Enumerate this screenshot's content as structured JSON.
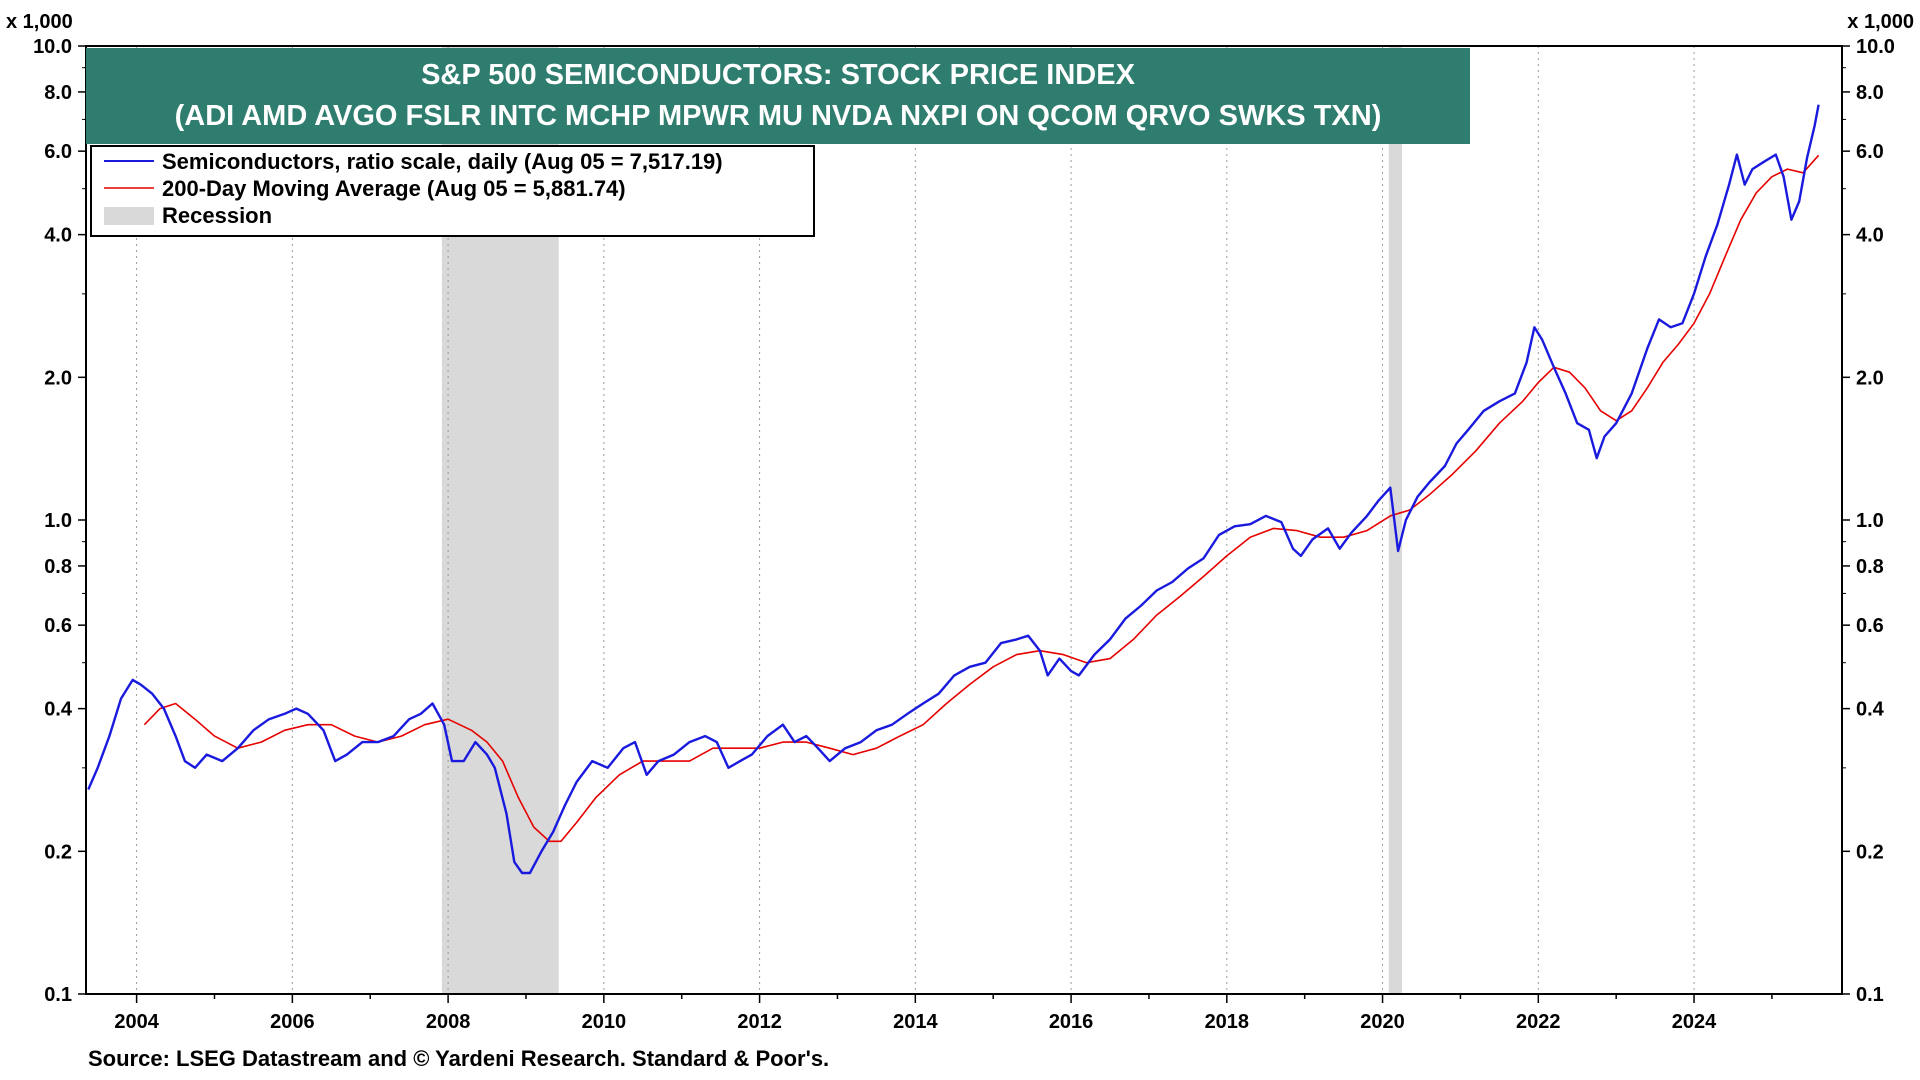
{
  "chart_data": {
    "type": "line",
    "title": "S&P 500 SEMICONDUCTORS: STOCK PRICE INDEX",
    "subtitle": "(ADI AMD AVGO FSLR INTC MCHP MPWR MU NVDA NXPI ON QCOM QRVO SWKS TXN)",
    "unit_label": "x 1,000",
    "y_scale": "log",
    "ylim": [
      0.1,
      10.0
    ],
    "xlim": [
      2003.35,
      2025.9
    ],
    "y_ticks": [
      {
        "value": 0.1,
        "label": "0.1"
      },
      {
        "value": 0.2,
        "label": "0.2"
      },
      {
        "value": 0.4,
        "label": "0.4"
      },
      {
        "value": 0.6,
        "label": "0.6"
      },
      {
        "value": 0.8,
        "label": "0.8"
      },
      {
        "value": 1.0,
        "label": "1.0"
      },
      {
        "value": 2.0,
        "label": "2.0"
      },
      {
        "value": 4.0,
        "label": "4.0"
      },
      {
        "value": 6.0,
        "label": "6.0"
      },
      {
        "value": 8.0,
        "label": "8.0"
      },
      {
        "value": 10.0,
        "label": "10.0"
      }
    ],
    "x_ticks": [
      {
        "value": 2004,
        "label": "2004"
      },
      {
        "value": 2006,
        "label": "2006"
      },
      {
        "value": 2008,
        "label": "2008"
      },
      {
        "value": 2010,
        "label": "2010"
      },
      {
        "value": 2012,
        "label": "2012"
      },
      {
        "value": 2014,
        "label": "2014"
      },
      {
        "value": 2016,
        "label": "2016"
      },
      {
        "value": 2018,
        "label": "2018"
      },
      {
        "value": 2020,
        "label": "2020"
      },
      {
        "value": 2022,
        "label": "2022"
      },
      {
        "value": 2024,
        "label": "2024"
      }
    ],
    "recessions": [
      {
        "start": 2007.92,
        "end": 2009.42
      },
      {
        "start": 2020.08,
        "end": 2020.25
      }
    ],
    "legend": [
      {
        "label": "Semiconductors, ratio scale, daily (Aug 05 = 7,517.19)",
        "color": "#1a1adf",
        "kind": "line"
      },
      {
        "label": "200-Day Moving Average (Aug 05 = 5,881.74)",
        "color": "#e60000",
        "kind": "line"
      },
      {
        "label": "Recession",
        "color": "#d9d9d9",
        "kind": "band"
      }
    ],
    "legend_position": "top-left",
    "grid": "vertical dotted at tick years",
    "colors": {
      "title_bg": "#2e7d6e",
      "recession": "#d9d9d9"
    },
    "series": [
      {
        "name": "Semiconductors, ratio scale, daily",
        "color": "#1a1adf",
        "points": [
          [
            2003.38,
            0.27
          ],
          [
            2003.5,
            0.3
          ],
          [
            2003.65,
            0.35
          ],
          [
            2003.8,
            0.42
          ],
          [
            2003.95,
            0.46
          ],
          [
            2004.05,
            0.45
          ],
          [
            2004.2,
            0.43
          ],
          [
            2004.35,
            0.4
          ],
          [
            2004.5,
            0.35
          ],
          [
            2004.62,
            0.31
          ],
          [
            2004.75,
            0.3
          ],
          [
            2004.9,
            0.32
          ],
          [
            2005.1,
            0.31
          ],
          [
            2005.3,
            0.33
          ],
          [
            2005.5,
            0.36
          ],
          [
            2005.7,
            0.38
          ],
          [
            2005.9,
            0.39
          ],
          [
            2006.05,
            0.4
          ],
          [
            2006.2,
            0.39
          ],
          [
            2006.4,
            0.36
          ],
          [
            2006.55,
            0.31
          ],
          [
            2006.7,
            0.32
          ],
          [
            2006.9,
            0.34
          ],
          [
            2007.1,
            0.34
          ],
          [
            2007.3,
            0.35
          ],
          [
            2007.5,
            0.38
          ],
          [
            2007.65,
            0.39
          ],
          [
            2007.8,
            0.41
          ],
          [
            2007.95,
            0.37
          ],
          [
            2008.05,
            0.31
          ],
          [
            2008.2,
            0.31
          ],
          [
            2008.35,
            0.34
          ],
          [
            2008.5,
            0.32
          ],
          [
            2008.6,
            0.3
          ],
          [
            2008.75,
            0.24
          ],
          [
            2008.85,
            0.19
          ],
          [
            2008.95,
            0.18
          ],
          [
            2009.05,
            0.18
          ],
          [
            2009.2,
            0.2
          ],
          [
            2009.35,
            0.22
          ],
          [
            2009.5,
            0.25
          ],
          [
            2009.65,
            0.28
          ],
          [
            2009.85,
            0.31
          ],
          [
            2010.05,
            0.3
          ],
          [
            2010.25,
            0.33
          ],
          [
            2010.4,
            0.34
          ],
          [
            2010.55,
            0.29
          ],
          [
            2010.7,
            0.31
          ],
          [
            2010.9,
            0.32
          ],
          [
            2011.1,
            0.34
          ],
          [
            2011.3,
            0.35
          ],
          [
            2011.45,
            0.34
          ],
          [
            2011.6,
            0.3
          ],
          [
            2011.75,
            0.31
          ],
          [
            2011.9,
            0.32
          ],
          [
            2012.1,
            0.35
          ],
          [
            2012.3,
            0.37
          ],
          [
            2012.45,
            0.34
          ],
          [
            2012.6,
            0.35
          ],
          [
            2012.75,
            0.33
          ],
          [
            2012.9,
            0.31
          ],
          [
            2013.1,
            0.33
          ],
          [
            2013.3,
            0.34
          ],
          [
            2013.5,
            0.36
          ],
          [
            2013.7,
            0.37
          ],
          [
            2013.9,
            0.39
          ],
          [
            2014.1,
            0.41
          ],
          [
            2014.3,
            0.43
          ],
          [
            2014.5,
            0.47
          ],
          [
            2014.7,
            0.49
          ],
          [
            2014.9,
            0.5
          ],
          [
            2015.1,
            0.55
          ],
          [
            2015.3,
            0.56
          ],
          [
            2015.45,
            0.57
          ],
          [
            2015.6,
            0.53
          ],
          [
            2015.7,
            0.47
          ],
          [
            2015.85,
            0.51
          ],
          [
            2016.0,
            0.48
          ],
          [
            2016.1,
            0.47
          ],
          [
            2016.3,
            0.52
          ],
          [
            2016.5,
            0.56
          ],
          [
            2016.7,
            0.62
          ],
          [
            2016.9,
            0.66
          ],
          [
            2017.1,
            0.71
          ],
          [
            2017.3,
            0.74
          ],
          [
            2017.5,
            0.79
          ],
          [
            2017.7,
            0.83
          ],
          [
            2017.9,
            0.93
          ],
          [
            2018.1,
            0.97
          ],
          [
            2018.3,
            0.98
          ],
          [
            2018.5,
            1.02
          ],
          [
            2018.7,
            0.99
          ],
          [
            2018.85,
            0.87
          ],
          [
            2018.95,
            0.84
          ],
          [
            2019.1,
            0.91
          ],
          [
            2019.3,
            0.96
          ],
          [
            2019.45,
            0.87
          ],
          [
            2019.6,
            0.94
          ],
          [
            2019.8,
            1.02
          ],
          [
            2019.95,
            1.1
          ],
          [
            2020.1,
            1.17
          ],
          [
            2020.2,
            0.86
          ],
          [
            2020.3,
            1.0
          ],
          [
            2020.45,
            1.12
          ],
          [
            2020.6,
            1.2
          ],
          [
            2020.8,
            1.3
          ],
          [
            2020.95,
            1.45
          ],
          [
            2021.1,
            1.55
          ],
          [
            2021.3,
            1.7
          ],
          [
            2021.5,
            1.78
          ],
          [
            2021.7,
            1.85
          ],
          [
            2021.85,
            2.15
          ],
          [
            2021.95,
            2.55
          ],
          [
            2022.05,
            2.4
          ],
          [
            2022.2,
            2.1
          ],
          [
            2022.35,
            1.85
          ],
          [
            2022.5,
            1.6
          ],
          [
            2022.65,
            1.55
          ],
          [
            2022.75,
            1.35
          ],
          [
            2022.85,
            1.5
          ],
          [
            2023.0,
            1.6
          ],
          [
            2023.2,
            1.85
          ],
          [
            2023.4,
            2.3
          ],
          [
            2023.55,
            2.65
          ],
          [
            2023.7,
            2.55
          ],
          [
            2023.85,
            2.6
          ],
          [
            2024.0,
            3.0
          ],
          [
            2024.15,
            3.6
          ],
          [
            2024.3,
            4.2
          ],
          [
            2024.45,
            5.1
          ],
          [
            2024.55,
            5.9
          ],
          [
            2024.65,
            5.1
          ],
          [
            2024.75,
            5.5
          ],
          [
            2024.9,
            5.7
          ],
          [
            2025.05,
            5.9
          ],
          [
            2025.15,
            5.3
          ],
          [
            2025.25,
            4.3
          ],
          [
            2025.35,
            4.7
          ],
          [
            2025.45,
            5.8
          ],
          [
            2025.55,
            6.8
          ],
          [
            2025.6,
            7.52
          ]
        ]
      },
      {
        "name": "200-Day Moving Average",
        "color": "#e60000",
        "points": [
          [
            2004.1,
            0.37
          ],
          [
            2004.3,
            0.4
          ],
          [
            2004.5,
            0.41
          ],
          [
            2004.75,
            0.38
          ],
          [
            2005.0,
            0.35
          ],
          [
            2005.3,
            0.33
          ],
          [
            2005.6,
            0.34
          ],
          [
            2005.9,
            0.36
          ],
          [
            2006.2,
            0.37
          ],
          [
            2006.5,
            0.37
          ],
          [
            2006.8,
            0.35
          ],
          [
            2007.1,
            0.34
          ],
          [
            2007.4,
            0.35
          ],
          [
            2007.7,
            0.37
          ],
          [
            2008.0,
            0.38
          ],
          [
            2008.3,
            0.36
          ],
          [
            2008.5,
            0.34
          ],
          [
            2008.7,
            0.31
          ],
          [
            2008.9,
            0.26
          ],
          [
            2009.1,
            0.225
          ],
          [
            2009.3,
            0.21
          ],
          [
            2009.45,
            0.21
          ],
          [
            2009.65,
            0.23
          ],
          [
            2009.9,
            0.26
          ],
          [
            2010.2,
            0.29
          ],
          [
            2010.5,
            0.31
          ],
          [
            2010.8,
            0.31
          ],
          [
            2011.1,
            0.31
          ],
          [
            2011.4,
            0.33
          ],
          [
            2011.7,
            0.33
          ],
          [
            2012.0,
            0.33
          ],
          [
            2012.3,
            0.34
          ],
          [
            2012.6,
            0.34
          ],
          [
            2012.9,
            0.33
          ],
          [
            2013.2,
            0.32
          ],
          [
            2013.5,
            0.33
          ],
          [
            2013.8,
            0.35
          ],
          [
            2014.1,
            0.37
          ],
          [
            2014.4,
            0.41
          ],
          [
            2014.7,
            0.45
          ],
          [
            2015.0,
            0.49
          ],
          [
            2015.3,
            0.52
          ],
          [
            2015.6,
            0.53
          ],
          [
            2015.9,
            0.52
          ],
          [
            2016.2,
            0.5
          ],
          [
            2016.5,
            0.51
          ],
          [
            2016.8,
            0.56
          ],
          [
            2017.1,
            0.63
          ],
          [
            2017.4,
            0.69
          ],
          [
            2017.7,
            0.76
          ],
          [
            2018.0,
            0.84
          ],
          [
            2018.3,
            0.92
          ],
          [
            2018.6,
            0.96
          ],
          [
            2018.9,
            0.95
          ],
          [
            2019.2,
            0.92
          ],
          [
            2019.5,
            0.92
          ],
          [
            2019.8,
            0.95
          ],
          [
            2020.1,
            1.02
          ],
          [
            2020.35,
            1.05
          ],
          [
            2020.6,
            1.13
          ],
          [
            2020.9,
            1.25
          ],
          [
            2021.2,
            1.4
          ],
          [
            2021.5,
            1.6
          ],
          [
            2021.8,
            1.78
          ],
          [
            2022.0,
            1.95
          ],
          [
            2022.2,
            2.1
          ],
          [
            2022.4,
            2.05
          ],
          [
            2022.6,
            1.9
          ],
          [
            2022.8,
            1.7
          ],
          [
            2023.0,
            1.62
          ],
          [
            2023.2,
            1.7
          ],
          [
            2023.4,
            1.9
          ],
          [
            2023.6,
            2.15
          ],
          [
            2023.8,
            2.35
          ],
          [
            2024.0,
            2.6
          ],
          [
            2024.2,
            3.0
          ],
          [
            2024.4,
            3.6
          ],
          [
            2024.6,
            4.3
          ],
          [
            2024.8,
            4.9
          ],
          [
            2025.0,
            5.3
          ],
          [
            2025.2,
            5.5
          ],
          [
            2025.4,
            5.4
          ],
          [
            2025.6,
            5.88
          ]
        ]
      }
    ]
  },
  "source": "Source: LSEG Datastream and © Yardeni Research. Standard & Poor's."
}
